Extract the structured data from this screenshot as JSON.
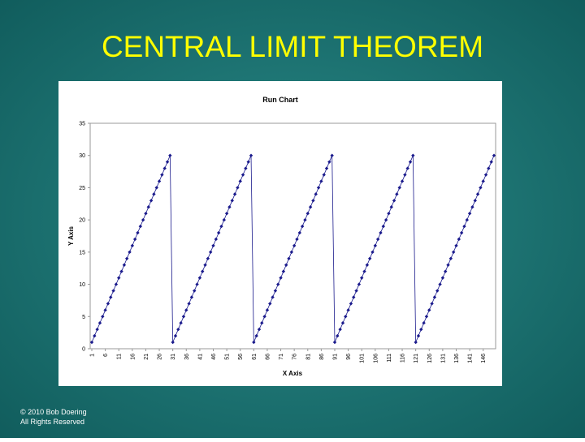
{
  "slide": {
    "title": "CENTRAL LIMIT THEOREM",
    "footer": [
      "© 2010 Bob Doering",
      "All Rights Reserved"
    ]
  },
  "chart_data": {
    "type": "line",
    "title": "Run Chart",
    "x_label": "X Axis",
    "y_label": "Y Axis",
    "color": "#1a1a8c",
    "grid": false,
    "x": [
      1,
      2,
      3,
      4,
      5,
      6,
      7,
      8,
      9,
      10,
      11,
      12,
      13,
      14,
      15,
      16,
      17,
      18,
      19,
      20,
      21,
      22,
      23,
      24,
      25,
      26,
      27,
      28,
      29,
      30,
      31,
      32,
      33,
      34,
      35,
      36,
      37,
      38,
      39,
      40,
      41,
      42,
      43,
      44,
      45,
      46,
      47,
      48,
      49,
      50,
      51,
      52,
      53,
      54,
      55,
      56,
      57,
      58,
      59,
      60,
      61,
      62,
      63,
      64,
      65,
      66,
      67,
      68,
      69,
      70,
      71,
      72,
      73,
      74,
      75,
      76,
      77,
      78,
      79,
      80,
      81,
      82,
      83,
      84,
      85,
      86,
      87,
      88,
      89,
      90,
      91,
      92,
      93,
      94,
      95,
      96,
      97,
      98,
      99,
      100,
      101,
      102,
      103,
      104,
      105,
      106,
      107,
      108,
      109,
      110,
      111,
      112,
      113,
      114,
      115,
      116,
      117,
      118,
      119,
      120,
      121,
      122,
      123,
      124,
      125,
      126,
      127,
      128,
      129,
      130,
      131,
      132,
      133,
      134,
      135,
      136,
      137,
      138,
      139,
      140,
      141,
      142,
      143,
      144,
      145,
      146,
      147,
      148,
      149,
      150
    ],
    "values": [
      1,
      2,
      3,
      4,
      5,
      6,
      7,
      8,
      9,
      10,
      11,
      12,
      13,
      14,
      15,
      16,
      17,
      18,
      19,
      20,
      21,
      22,
      23,
      24,
      25,
      26,
      27,
      28,
      29,
      30,
      1,
      2,
      3,
      4,
      5,
      6,
      7,
      8,
      9,
      10,
      11,
      12,
      13,
      14,
      15,
      16,
      17,
      18,
      19,
      20,
      21,
      22,
      23,
      24,
      25,
      26,
      27,
      28,
      29,
      30,
      1,
      2,
      3,
      4,
      5,
      6,
      7,
      8,
      9,
      10,
      11,
      12,
      13,
      14,
      15,
      16,
      17,
      18,
      19,
      20,
      21,
      22,
      23,
      24,
      25,
      26,
      27,
      28,
      29,
      30,
      1,
      2,
      3,
      4,
      5,
      6,
      7,
      8,
      9,
      10,
      11,
      12,
      13,
      14,
      15,
      16,
      17,
      18,
      19,
      20,
      21,
      22,
      23,
      24,
      25,
      26,
      27,
      28,
      29,
      30,
      1,
      2,
      3,
      4,
      5,
      6,
      7,
      8,
      9,
      10,
      11,
      12,
      13,
      14,
      15,
      16,
      17,
      18,
      19,
      20,
      21,
      22,
      23,
      24,
      25,
      26,
      27,
      28,
      29,
      30
    ],
    "xlim": [
      1,
      150
    ],
    "xticks": [
      1,
      6,
      11,
      16,
      21,
      26,
      31,
      36,
      41,
      46,
      51,
      56,
      61,
      66,
      71,
      76,
      81,
      86,
      91,
      96,
      101,
      106,
      111,
      116,
      121,
      126,
      131,
      136,
      141,
      146
    ],
    "ylim": [
      0,
      35
    ],
    "yticks": [
      0,
      5,
      10,
      15,
      20,
      25,
      30,
      35
    ]
  }
}
